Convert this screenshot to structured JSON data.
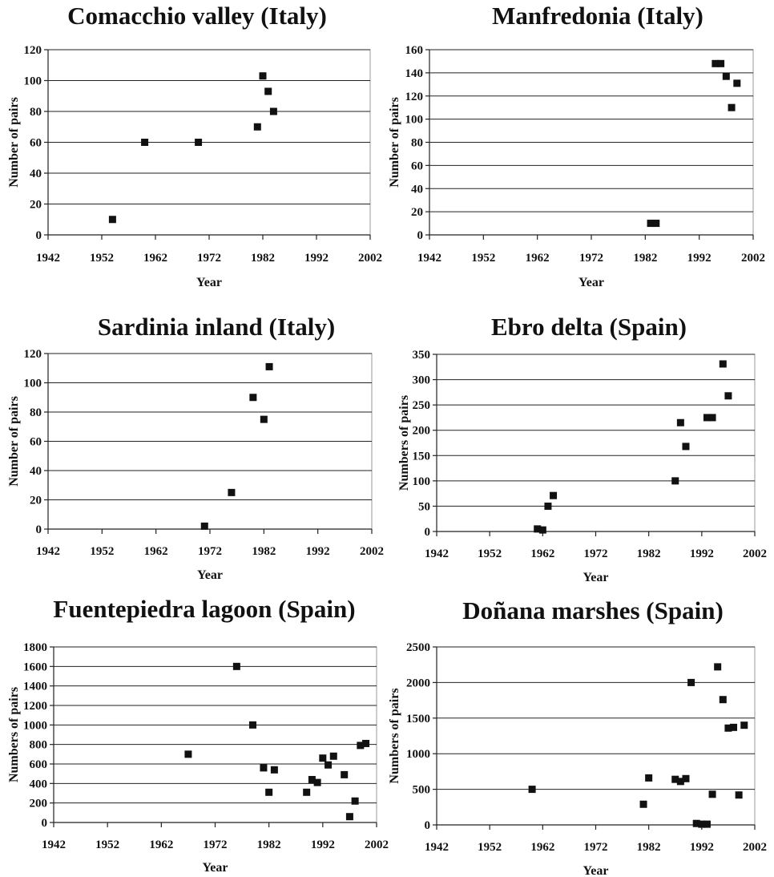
{
  "chart_data": [
    {
      "type": "scatter",
      "title": "Comacchio valley (Italy)",
      "xlabel": "Year",
      "ylabel": "Number of pairs",
      "xlim": [
        1942,
        2002
      ],
      "ylim": [
        0,
        120
      ],
      "xticks": [
        1942,
        1952,
        1962,
        1972,
        1982,
        1992,
        2002
      ],
      "yticks": [
        0,
        20,
        40,
        60,
        80,
        100,
        120
      ],
      "grid": true,
      "x": [
        1954,
        1960,
        1970,
        1981,
        1982,
        1983,
        1984
      ],
      "y": [
        10,
        60,
        60,
        70,
        103,
        93,
        80
      ]
    },
    {
      "type": "scatter",
      "title": "Manfredonia  (Italy)",
      "xlabel": "Year",
      "ylabel": "Number of pairs",
      "xlim": [
        1942,
        2002
      ],
      "ylim": [
        0,
        160
      ],
      "xticks": [
        1942,
        1952,
        1962,
        1972,
        1982,
        1992,
        2002
      ],
      "yticks": [
        0,
        20,
        40,
        60,
        80,
        100,
        120,
        140,
        160
      ],
      "grid": true,
      "x": [
        1983,
        1984,
        1995,
        1996,
        1997,
        1998,
        1999
      ],
      "y": [
        10,
        10,
        148,
        148,
        137,
        110,
        131
      ]
    },
    {
      "type": "scatter",
      "title": "Sardinia inland (Italy)",
      "xlabel": "Year",
      "ylabel": "Number of pairs",
      "xlim": [
        1942,
        2002
      ],
      "ylim": [
        0,
        120
      ],
      "xticks": [
        1942,
        1952,
        1962,
        1972,
        1982,
        1992,
        2002
      ],
      "yticks": [
        0,
        20,
        40,
        60,
        80,
        100,
        120
      ],
      "grid": true,
      "x": [
        1971,
        1976,
        1980,
        1982,
        1983
      ],
      "y": [
        2,
        25,
        90,
        75,
        111
      ]
    },
    {
      "type": "scatter",
      "title": "Ebro delta (Spain)",
      "xlabel": "Year",
      "ylabel": "Numbers of pairs",
      "xlim": [
        1942,
        2002
      ],
      "ylim": [
        0,
        350
      ],
      "xticks": [
        1942,
        1952,
        1962,
        1972,
        1982,
        1992,
        2002
      ],
      "yticks": [
        0,
        50,
        100,
        150,
        200,
        250,
        300,
        350
      ],
      "grid": true,
      "x": [
        1961,
        1962,
        1963,
        1964,
        1987,
        1988,
        1989,
        1993,
        1994,
        1996,
        1997
      ],
      "y": [
        5,
        3,
        50,
        71,
        100,
        215,
        168,
        225,
        225,
        331,
        268
      ]
    },
    {
      "type": "scatter",
      "title": "Fuentepiedra lagoon (Spain)",
      "xlabel": "Year",
      "ylabel": "Numbers of pairs",
      "xlim": [
        1942,
        2002
      ],
      "ylim": [
        0,
        1800
      ],
      "xticks": [
        1942,
        1952,
        1962,
        1972,
        1982,
        1992,
        2002
      ],
      "yticks": [
        0,
        200,
        400,
        600,
        800,
        1000,
        1200,
        1400,
        1600,
        1800
      ],
      "grid": true,
      "x": [
        1967,
        1976,
        1979,
        1981,
        1982,
        1983,
        1989,
        1990,
        1991,
        1992,
        1993,
        1994,
        1996,
        1997,
        1998,
        1999,
        2000
      ],
      "y": [
        700,
        1600,
        1000,
        560,
        310,
        540,
        310,
        440,
        410,
        660,
        590,
        680,
        490,
        60,
        220,
        790,
        810
      ]
    },
    {
      "type": "scatter",
      "title": "Doñana marshes (Spain)",
      "xlabel": "Year",
      "ylabel": "Numbers of pairs",
      "xlim": [
        1942,
        2002
      ],
      "ylim": [
        0,
        2500
      ],
      "xticks": [
        1942,
        1952,
        1962,
        1972,
        1982,
        1992,
        2002
      ],
      "yticks": [
        0,
        500,
        1000,
        1500,
        2000,
        2500
      ],
      "grid": true,
      "x": [
        1960,
        1981,
        1982,
        1987,
        1988,
        1989,
        1990,
        1991,
        1992,
        1993,
        1994,
        1995,
        1996,
        1997,
        1998,
        1999,
        2000
      ],
      "y": [
        500,
        290,
        660,
        640,
        610,
        650,
        2000,
        20,
        10,
        10,
        430,
        2220,
        1760,
        1360,
        1370,
        420,
        1400
      ]
    }
  ]
}
